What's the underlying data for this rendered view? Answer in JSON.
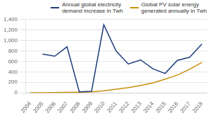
{
  "chart_data": {
    "type": "line",
    "x": [
      2004,
      2005,
      2006,
      2007,
      2008,
      2009,
      2010,
      2011,
      2012,
      2013,
      2014,
      2015,
      2016,
      2017,
      2018
    ],
    "series": [
      {
        "name": "Annual global electricity\ndemand increase in Twh",
        "color": "#1f3d7a",
        "values": [
          null,
          740,
          700,
          880,
          20,
          30,
          1300,
          800,
          550,
          630,
          460,
          370,
          620,
          680,
          930
        ]
      },
      {
        "name": "Global PV solar energy\ngenerated annually in Twh",
        "color": "#c8900a",
        "values": [
          3,
          4,
          6,
          8,
          12,
          18,
          40,
          70,
          100,
          140,
          190,
          260,
          340,
          450,
          580
        ]
      }
    ],
    "xlim": [
      2003.6,
      2018.4
    ],
    "xticks": [
      2004,
      2005,
      2006,
      2007,
      2008,
      2009,
      2010,
      2011,
      2012,
      2013,
      2014,
      2015,
      2016,
      2017,
      2018
    ],
    "ylim": [
      0,
      1400
    ],
    "yticks": [
      0,
      200,
      400,
      600,
      800,
      {
        "value": 1000,
        "label": "1,000"
      },
      {
        "value": 1200,
        "label": "1,200"
      },
      {
        "value": 1400,
        "label": "1,400"
      }
    ],
    "grid": "y",
    "legend": "upper right"
  }
}
